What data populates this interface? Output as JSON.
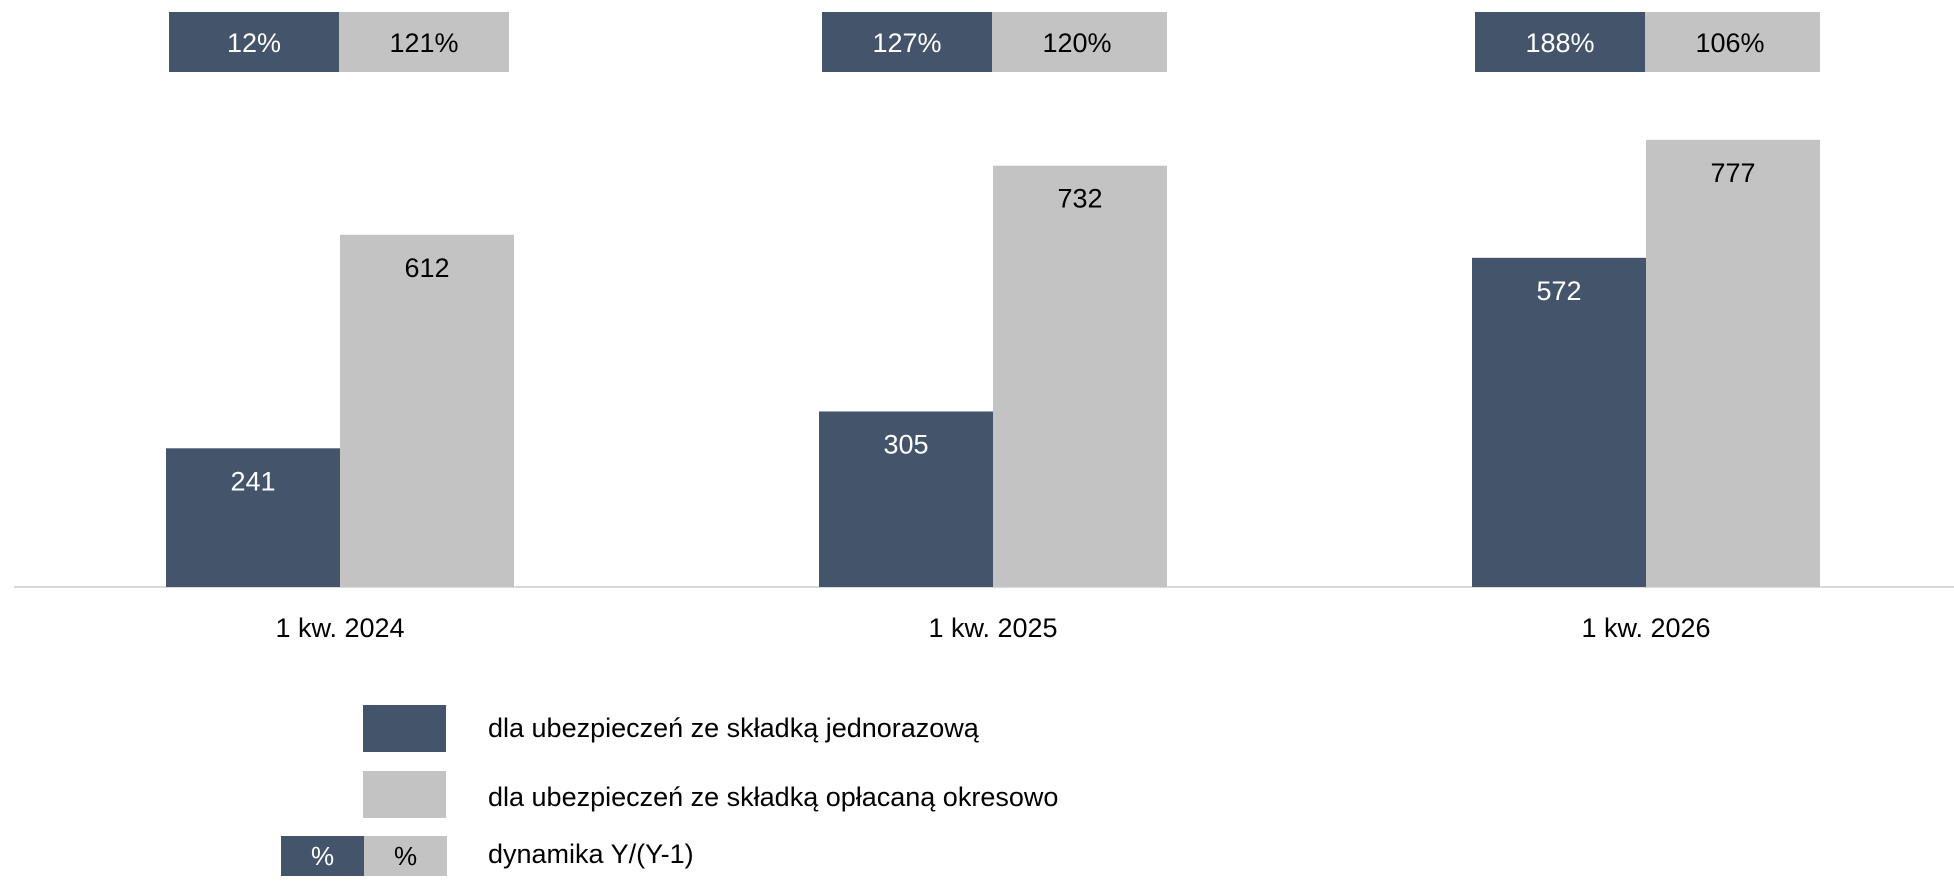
{
  "chart_data": {
    "type": "bar",
    "categories": [
      "1 kw. 2024",
      "1 kw. 2025",
      "1 kw. 2026"
    ],
    "series": [
      {
        "name": "dla ubezpieczeń ze składką jednorazową",
        "values": [
          241,
          305,
          572
        ],
        "color": "#44546A"
      },
      {
        "name": "dla ubezpieczeń ze składką opłacaną okresowo",
        "values": [
          612,
          732,
          777
        ],
        "color": "#C3C3C3"
      }
    ],
    "dynamics": {
      "label": "dynamika Y/(Y-1)",
      "series1": [
        "12%",
        "127%",
        "188%"
      ],
      "series2": [
        "121%",
        "120%",
        "106%"
      ]
    },
    "ylim": [
      0,
      850
    ],
    "grid": false,
    "legend_position": "bottom"
  },
  "legend": {
    "item1": "dla ubezpieczeń ze składką jednorazową",
    "item2": "dla ubezpieczeń ze składką opłacaną okresowo",
    "item3": "dynamika Y/(Y-1)",
    "mini1": "%",
    "mini2": "%"
  }
}
